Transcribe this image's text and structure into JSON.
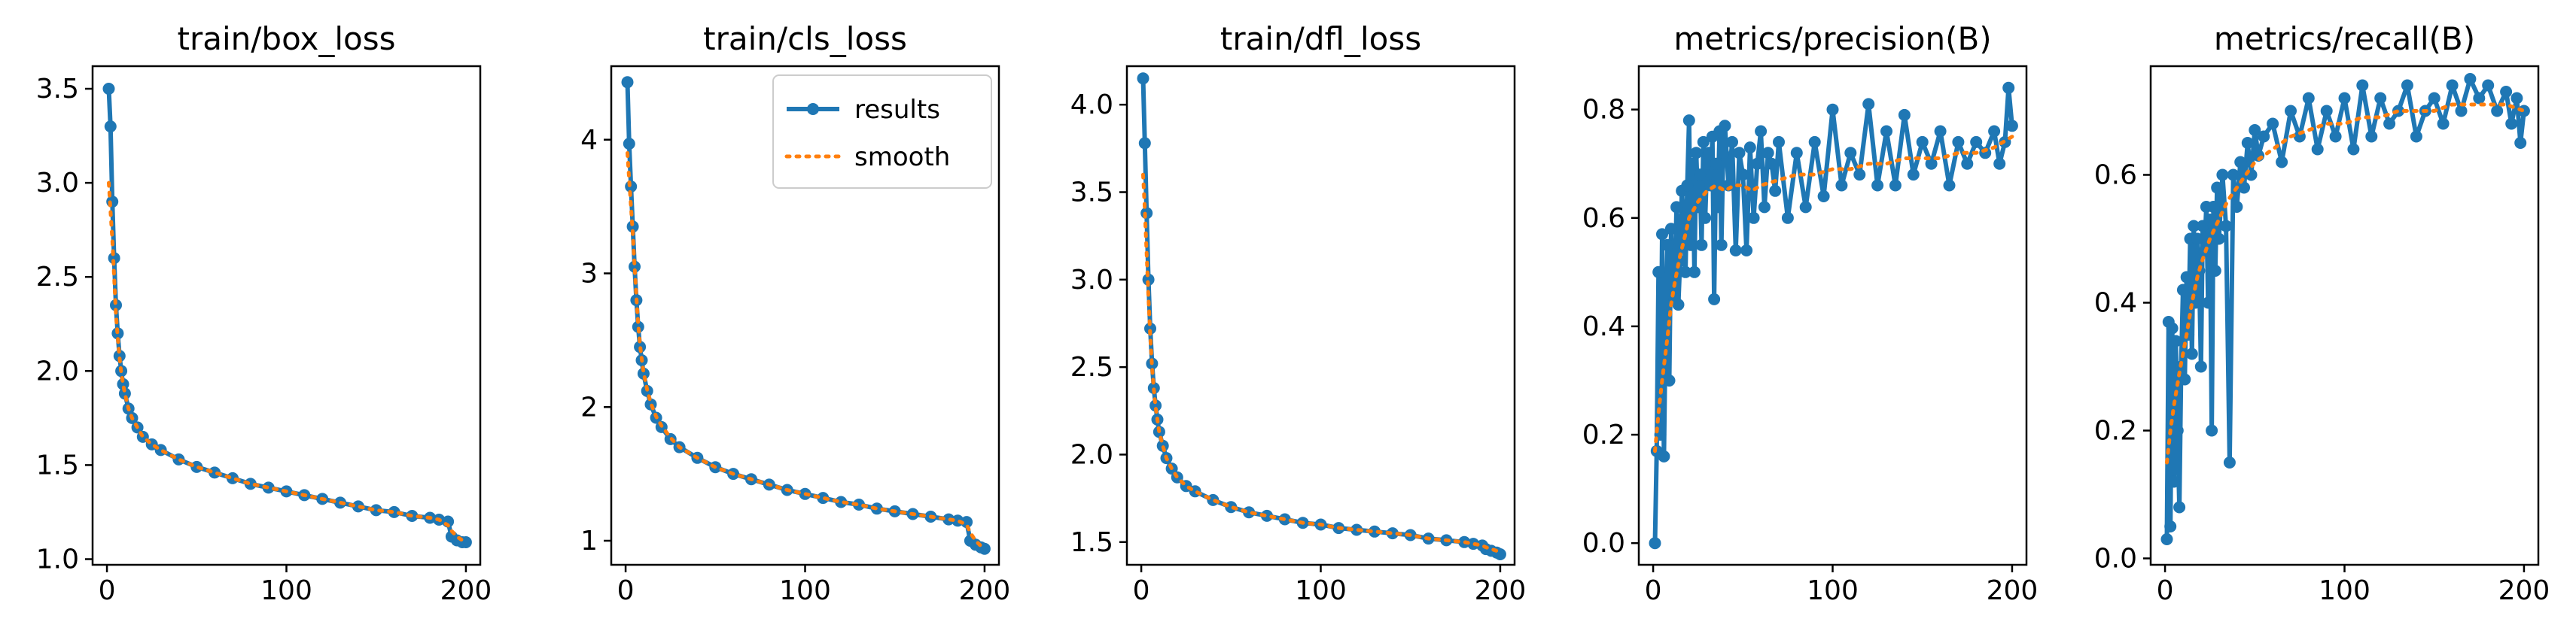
{
  "colors": {
    "results": "#1f77b4",
    "smooth": "#ff7f0e"
  },
  "legend": {
    "results_label": "results",
    "smooth_label": "smooth",
    "placement": "upper-right of panel 2"
  },
  "chart_data": [
    {
      "type": "line",
      "title": "train/box_loss",
      "xlim": [
        -8,
        208
      ],
      "ylim": [
        0.97,
        3.62
      ],
      "xticks": [
        0,
        100,
        200
      ],
      "xtick_labels": [
        "0",
        "100",
        "200"
      ],
      "yticks": [
        1.0,
        1.5,
        2.0,
        2.5,
        3.0,
        3.5
      ],
      "ytick_labels": [
        "1.0",
        "1.5",
        "2.0",
        "2.5",
        "3.0",
        "3.5"
      ],
      "series": [
        {
          "name": "results",
          "x": [
            1,
            2,
            3,
            4,
            5,
            6,
            7,
            8,
            9,
            10,
            12,
            14,
            17,
            20,
            25,
            30,
            40,
            50,
            60,
            70,
            80,
            90,
            100,
            110,
            120,
            130,
            140,
            150,
            160,
            170,
            180,
            185,
            190,
            192,
            195,
            198,
            200
          ],
          "y": [
            3.5,
            3.3,
            2.9,
            2.6,
            2.35,
            2.2,
            2.08,
            2.0,
            1.93,
            1.88,
            1.8,
            1.75,
            1.7,
            1.65,
            1.61,
            1.58,
            1.53,
            1.49,
            1.46,
            1.43,
            1.4,
            1.38,
            1.36,
            1.34,
            1.32,
            1.3,
            1.28,
            1.26,
            1.25,
            1.23,
            1.22,
            1.21,
            1.2,
            1.12,
            1.1,
            1.09,
            1.09
          ]
        },
        {
          "name": "smooth",
          "x": [
            1,
            2,
            3,
            4,
            5,
            6,
            7,
            8,
            9,
            10,
            12,
            14,
            17,
            20,
            25,
            30,
            40,
            50,
            60,
            70,
            80,
            90,
            100,
            110,
            120,
            130,
            140,
            150,
            160,
            170,
            180,
            185,
            190,
            192,
            195,
            198,
            200
          ],
          "y": [
            3.0,
            2.85,
            2.7,
            2.5,
            2.3,
            2.18,
            2.07,
            1.99,
            1.93,
            1.88,
            1.8,
            1.75,
            1.7,
            1.65,
            1.61,
            1.58,
            1.53,
            1.49,
            1.46,
            1.43,
            1.4,
            1.38,
            1.36,
            1.34,
            1.32,
            1.3,
            1.28,
            1.26,
            1.25,
            1.23,
            1.22,
            1.21,
            1.18,
            1.15,
            1.12,
            1.1,
            1.09
          ]
        }
      ]
    },
    {
      "type": "line",
      "title": "train/cls_loss",
      "xlim": [
        -8,
        208
      ],
      "ylim": [
        0.82,
        4.55
      ],
      "xticks": [
        0,
        100,
        200
      ],
      "xtick_labels": [
        "0",
        "100",
        "200"
      ],
      "yticks": [
        1,
        2,
        3,
        4
      ],
      "ytick_labels": [
        "1",
        "2",
        "3",
        "4"
      ],
      "series": [
        {
          "name": "results",
          "x": [
            1,
            2,
            3,
            4,
            5,
            6,
            7,
            8,
            9,
            10,
            12,
            14,
            17,
            20,
            25,
            30,
            40,
            50,
            60,
            70,
            80,
            90,
            100,
            110,
            120,
            130,
            140,
            150,
            160,
            170,
            180,
            185,
            190,
            192,
            195,
            198,
            200
          ],
          "y": [
            4.43,
            3.97,
            3.65,
            3.35,
            3.05,
            2.8,
            2.6,
            2.45,
            2.35,
            2.25,
            2.12,
            2.02,
            1.92,
            1.85,
            1.76,
            1.7,
            1.62,
            1.55,
            1.5,
            1.46,
            1.42,
            1.38,
            1.35,
            1.32,
            1.29,
            1.27,
            1.24,
            1.22,
            1.2,
            1.18,
            1.16,
            1.15,
            1.14,
            1.0,
            0.97,
            0.95,
            0.94
          ]
        },
        {
          "name": "smooth",
          "x": [
            1,
            2,
            3,
            4,
            5,
            6,
            7,
            8,
            9,
            10,
            12,
            14,
            17,
            20,
            25,
            30,
            40,
            50,
            60,
            70,
            80,
            90,
            100,
            110,
            120,
            130,
            140,
            150,
            160,
            170,
            180,
            185,
            190,
            192,
            195,
            198,
            200
          ],
          "y": [
            3.9,
            3.7,
            3.5,
            3.3,
            3.05,
            2.82,
            2.62,
            2.47,
            2.36,
            2.26,
            2.13,
            2.03,
            1.93,
            1.86,
            1.77,
            1.7,
            1.62,
            1.55,
            1.5,
            1.46,
            1.42,
            1.38,
            1.35,
            1.32,
            1.29,
            1.27,
            1.24,
            1.22,
            1.2,
            1.18,
            1.16,
            1.15,
            1.12,
            1.06,
            1.0,
            0.96,
            0.94
          ]
        }
      ]
    },
    {
      "type": "line",
      "title": "train/dfl_loss",
      "xlim": [
        -8,
        208
      ],
      "ylim": [
        1.37,
        4.22
      ],
      "xticks": [
        0,
        100,
        200
      ],
      "xtick_labels": [
        "0",
        "100",
        "200"
      ],
      "yticks": [
        1.5,
        2.0,
        2.5,
        3.0,
        3.5,
        4.0
      ],
      "ytick_labels": [
        "1.5",
        "2.0",
        "2.5",
        "3.0",
        "3.5",
        "4.0"
      ],
      "series": [
        {
          "name": "results",
          "x": [
            1,
            2,
            3,
            4,
            5,
            6,
            7,
            8,
            9,
            10,
            12,
            14,
            17,
            20,
            25,
            30,
            40,
            50,
            60,
            70,
            80,
            90,
            100,
            110,
            120,
            130,
            140,
            150,
            160,
            170,
            180,
            185,
            190,
            192,
            195,
            198,
            200
          ],
          "y": [
            4.15,
            3.78,
            3.38,
            3.0,
            2.72,
            2.52,
            2.38,
            2.28,
            2.2,
            2.13,
            2.05,
            1.98,
            1.92,
            1.87,
            1.82,
            1.79,
            1.74,
            1.7,
            1.67,
            1.65,
            1.63,
            1.61,
            1.6,
            1.58,
            1.57,
            1.56,
            1.55,
            1.54,
            1.52,
            1.51,
            1.5,
            1.49,
            1.48,
            1.46,
            1.45,
            1.44,
            1.43
          ]
        },
        {
          "name": "smooth",
          "x": [
            1,
            2,
            3,
            4,
            5,
            6,
            7,
            8,
            9,
            10,
            12,
            14,
            17,
            20,
            25,
            30,
            40,
            50,
            60,
            70,
            80,
            90,
            100,
            110,
            120,
            130,
            140,
            150,
            160,
            170,
            180,
            185,
            190,
            192,
            195,
            198,
            200
          ],
          "y": [
            3.6,
            3.4,
            3.15,
            2.9,
            2.68,
            2.5,
            2.37,
            2.27,
            2.2,
            2.13,
            2.05,
            1.98,
            1.92,
            1.87,
            1.82,
            1.79,
            1.74,
            1.7,
            1.67,
            1.65,
            1.63,
            1.61,
            1.6,
            1.58,
            1.57,
            1.56,
            1.55,
            1.54,
            1.52,
            1.51,
            1.5,
            1.49,
            1.48,
            1.47,
            1.46,
            1.45,
            1.44
          ]
        }
      ]
    },
    {
      "type": "line",
      "title": "metrics/precision(B)",
      "xlim": [
        -8,
        208
      ],
      "ylim": [
        -0.04,
        0.88
      ],
      "xticks": [
        0,
        100,
        200
      ],
      "xtick_labels": [
        "0",
        "100",
        "200"
      ],
      "yticks": [
        0.0,
        0.2,
        0.4,
        0.6,
        0.8
      ],
      "ytick_labels": [
        "0.0",
        "0.2",
        "0.4",
        "0.6",
        "0.8"
      ],
      "series": [
        {
          "name": "results",
          "x": [
            1,
            2,
            3,
            4,
            5,
            6,
            7,
            8,
            9,
            10,
            11,
            12,
            13,
            14,
            15,
            16,
            17,
            18,
            19,
            20,
            21,
            22,
            23,
            24,
            25,
            26,
            27,
            28,
            29,
            30,
            31,
            32,
            33,
            34,
            35,
            36,
            37,
            38,
            39,
            40,
            42,
            44,
            46,
            48,
            50,
            52,
            54,
            56,
            58,
            60,
            62,
            64,
            66,
            68,
            70,
            75,
            80,
            85,
            90,
            95,
            100,
            105,
            110,
            115,
            120,
            125,
            130,
            135,
            140,
            145,
            150,
            155,
            160,
            165,
            170,
            175,
            180,
            185,
            190,
            193,
            196,
            198,
            200
          ],
          "y": [
            0.0,
            0.17,
            0.5,
            0.2,
            0.57,
            0.16,
            0.42,
            0.55,
            0.3,
            0.58,
            0.46,
            0.45,
            0.62,
            0.44,
            0.52,
            0.65,
            0.6,
            0.5,
            0.66,
            0.78,
            0.55,
            0.7,
            0.5,
            0.72,
            0.62,
            0.68,
            0.55,
            0.74,
            0.6,
            0.7,
            0.72,
            0.66,
            0.75,
            0.45,
            0.7,
            0.62,
            0.76,
            0.55,
            0.72,
            0.77,
            0.66,
            0.74,
            0.54,
            0.72,
            0.68,
            0.54,
            0.73,
            0.6,
            0.7,
            0.76,
            0.62,
            0.72,
            0.7,
            0.65,
            0.74,
            0.6,
            0.72,
            0.62,
            0.74,
            0.64,
            0.8,
            0.66,
            0.72,
            0.68,
            0.81,
            0.66,
            0.76,
            0.66,
            0.79,
            0.68,
            0.74,
            0.7,
            0.76,
            0.66,
            0.74,
            0.7,
            0.74,
            0.72,
            0.76,
            0.7,
            0.74,
            0.84,
            0.77
          ]
        },
        {
          "name": "smooth",
          "x": [
            1,
            3,
            5,
            8,
            10,
            12,
            15,
            18,
            20,
            25,
            30,
            35,
            40,
            45,
            50,
            55,
            60,
            70,
            80,
            90,
            100,
            110,
            120,
            130,
            140,
            150,
            160,
            170,
            180,
            190,
            200
          ],
          "y": [
            0.17,
            0.24,
            0.3,
            0.38,
            0.44,
            0.48,
            0.53,
            0.57,
            0.6,
            0.63,
            0.65,
            0.66,
            0.65,
            0.66,
            0.66,
            0.65,
            0.66,
            0.67,
            0.68,
            0.68,
            0.69,
            0.69,
            0.7,
            0.7,
            0.71,
            0.71,
            0.71,
            0.72,
            0.72,
            0.73,
            0.75
          ]
        }
      ]
    },
    {
      "type": "line",
      "title": "metrics/recall(B)",
      "xlim": [
        -8,
        208
      ],
      "ylim": [
        -0.01,
        0.77
      ],
      "xticks": [
        0,
        100,
        200
      ],
      "xtick_labels": [
        "0",
        "100",
        "200"
      ],
      "yticks": [
        0.0,
        0.2,
        0.4,
        0.6
      ],
      "ytick_labels": [
        "0.0",
        "0.2",
        "0.4",
        "0.6"
      ],
      "series": [
        {
          "name": "results",
          "x": [
            1,
            2,
            3,
            4,
            5,
            6,
            7,
            8,
            9,
            10,
            11,
            12,
            13,
            14,
            15,
            16,
            17,
            18,
            19,
            20,
            21,
            22,
            23,
            24,
            25,
            26,
            27,
            28,
            29,
            30,
            32,
            34,
            36,
            38,
            40,
            42,
            44,
            46,
            48,
            50,
            52,
            55,
            60,
            65,
            70,
            75,
            80,
            85,
            90,
            95,
            100,
            105,
            110,
            115,
            120,
            125,
            130,
            135,
            140,
            145,
            150,
            155,
            160,
            165,
            170,
            175,
            180,
            185,
            190,
            193,
            196,
            198,
            200
          ],
          "y": [
            0.03,
            0.37,
            0.05,
            0.36,
            0.12,
            0.34,
            0.2,
            0.08,
            0.3,
            0.42,
            0.28,
            0.44,
            0.35,
            0.5,
            0.32,
            0.52,
            0.4,
            0.5,
            0.45,
            0.3,
            0.52,
            0.48,
            0.55,
            0.4,
            0.53,
            0.2,
            0.55,
            0.45,
            0.58,
            0.5,
            0.6,
            0.52,
            0.15,
            0.6,
            0.55,
            0.62,
            0.58,
            0.65,
            0.6,
            0.67,
            0.63,
            0.66,
            0.68,
            0.62,
            0.7,
            0.66,
            0.72,
            0.64,
            0.7,
            0.66,
            0.72,
            0.64,
            0.74,
            0.66,
            0.72,
            0.68,
            0.7,
            0.74,
            0.66,
            0.7,
            0.72,
            0.68,
            0.74,
            0.7,
            0.75,
            0.72,
            0.74,
            0.7,
            0.73,
            0.68,
            0.72,
            0.65,
            0.7
          ]
        },
        {
          "name": "smooth",
          "x": [
            1,
            3,
            5,
            8,
            10,
            12,
            15,
            18,
            20,
            25,
            30,
            35,
            40,
            45,
            50,
            55,
            60,
            70,
            80,
            90,
            100,
            110,
            120,
            130,
            140,
            150,
            160,
            170,
            180,
            190,
            200
          ],
          "y": [
            0.15,
            0.2,
            0.24,
            0.29,
            0.32,
            0.35,
            0.4,
            0.44,
            0.46,
            0.5,
            0.53,
            0.56,
            0.58,
            0.6,
            0.62,
            0.63,
            0.64,
            0.66,
            0.67,
            0.68,
            0.68,
            0.69,
            0.69,
            0.7,
            0.7,
            0.7,
            0.71,
            0.71,
            0.71,
            0.71,
            0.7
          ]
        }
      ]
    }
  ]
}
